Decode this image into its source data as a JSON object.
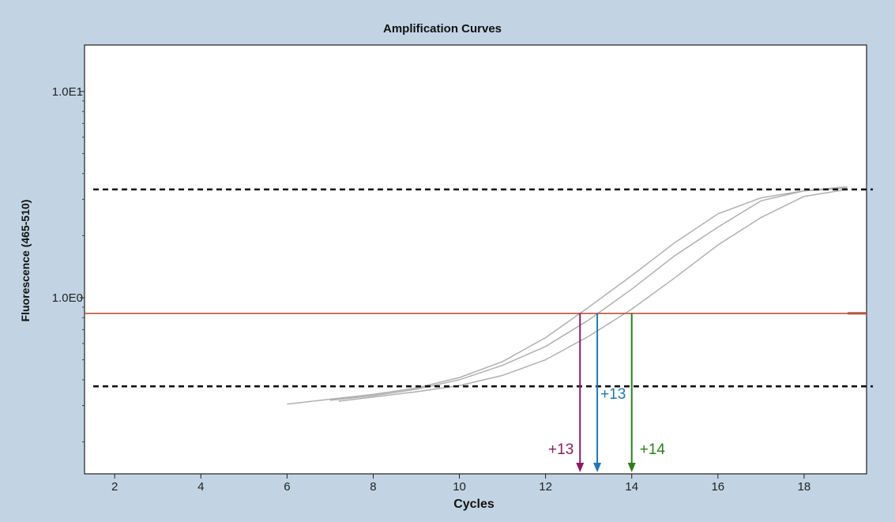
{
  "chart_data": {
    "type": "line",
    "title": "Amplification Curves",
    "xlabel": "Cycles",
    "ylabel": "Fluorescence (465-510)",
    "xlim": [
      1.3,
      19.45
    ],
    "ylim": [
      0.14,
      16.8
    ],
    "yscale": "log",
    "x_ticks": [
      2,
      4,
      6,
      8,
      10,
      12,
      14,
      16,
      18
    ],
    "x_tick_labels": [
      "2",
      "4",
      "6",
      "8",
      "10",
      "12",
      "14",
      "16",
      "18"
    ],
    "y_ticks": [
      1.0,
      10.0
    ],
    "y_tick_labels": [
      "1.0E0",
      "1.0E1"
    ],
    "grid": false,
    "series": [
      {
        "color": "#b0b0b0",
        "x": [
          6,
          7,
          8,
          9,
          10,
          11,
          12,
          13,
          14,
          15,
          16,
          17,
          18,
          19
        ],
        "y": [
          0.305,
          0.322,
          0.34,
          0.365,
          0.41,
          0.49,
          0.64,
          0.9,
          1.28,
          1.85,
          2.55,
          3.05,
          3.3,
          3.45
        ]
      },
      {
        "color": "#b0b0b0",
        "x": [
          7,
          8,
          9,
          10,
          11,
          12,
          13,
          14,
          15,
          16,
          17,
          18,
          19
        ],
        "y": [
          0.318,
          0.335,
          0.36,
          0.4,
          0.47,
          0.58,
          0.78,
          1.1,
          1.6,
          2.2,
          2.95,
          3.3,
          3.4
        ]
      },
      {
        "color": "#b0b0b0",
        "x": [
          7.2,
          8,
          9,
          10,
          11,
          12,
          13,
          14,
          15,
          16,
          17,
          18,
          19
        ],
        "y": [
          0.315,
          0.33,
          0.35,
          0.375,
          0.42,
          0.5,
          0.65,
          0.88,
          1.25,
          1.8,
          2.45,
          3.1,
          3.35
        ]
      }
    ],
    "threshold": {
      "y": 0.84,
      "color": "#b5543f"
    },
    "dashed_lines": [
      {
        "y": 3.35
      },
      {
        "y": 0.372
      }
    ],
    "annotations": [
      {
        "label": "+13",
        "x": 12.8,
        "color": "#8b1c62",
        "side": "left"
      },
      {
        "label": "+13",
        "x": 13.2,
        "color": "#1f78b4",
        "side": "right"
      },
      {
        "label": "+14",
        "x": 14.0,
        "color": "#2e7d1f",
        "side": "right"
      }
    ]
  }
}
